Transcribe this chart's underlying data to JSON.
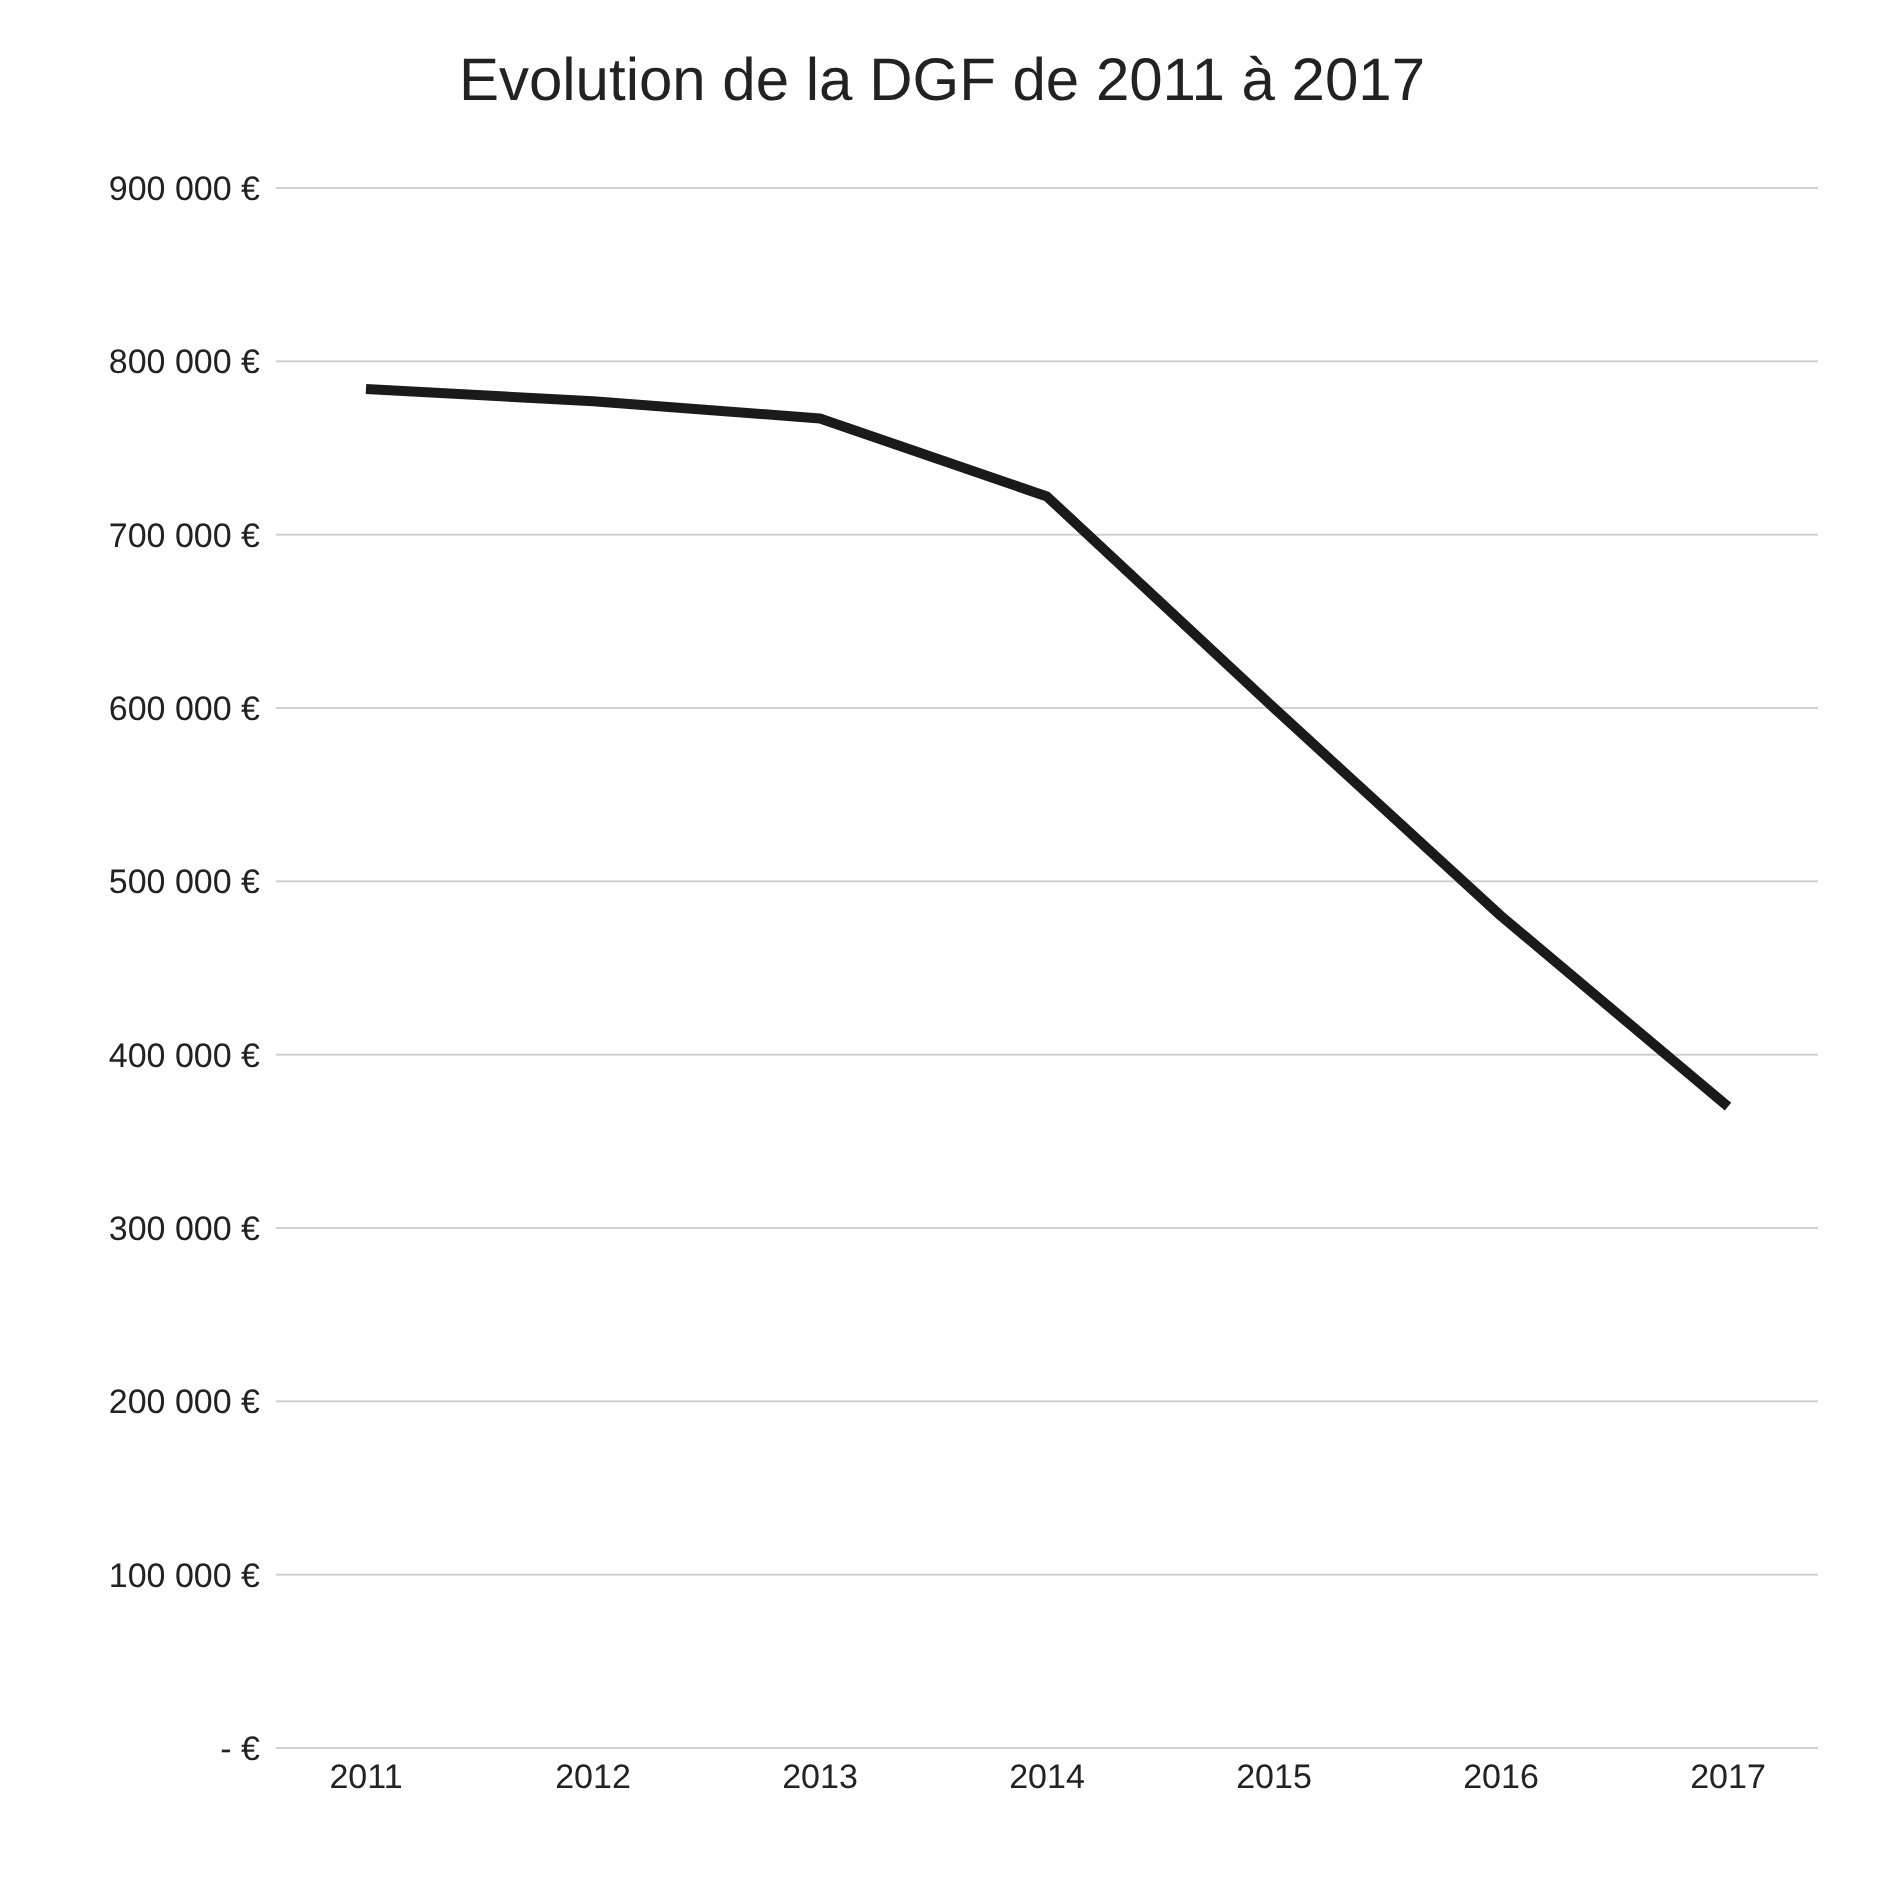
{
  "chart_data": {
    "type": "line",
    "title": "Evolution de la DGF de 2011 à 2017",
    "categories": [
      "2011",
      "2012",
      "2013",
      "2014",
      "2015",
      "2016",
      "2017"
    ],
    "series": [
      {
        "color": "#1a1a1a",
        "values": [
          784000,
          777000,
          767000,
          722000,
          600000,
          480000,
          370000
        ]
      }
    ],
    "ylim": [
      0,
      900000
    ],
    "yticks": [
      {
        "value": 0,
        "label": "- €"
      },
      {
        "value": 100000,
        "label": "100 000 €"
      },
      {
        "value": 200000,
        "label": "200 000 €"
      },
      {
        "value": 300000,
        "label": "300 000 €"
      },
      {
        "value": 400000,
        "label": "400 000 €"
      },
      {
        "value": 500000,
        "label": "500 000 €"
      },
      {
        "value": 600000,
        "label": "600 000 €"
      },
      {
        "value": 700000,
        "label": "700 000 €"
      },
      {
        "value": 800000,
        "label": "800 000 €"
      },
      {
        "value": 900000,
        "label": "900 000 €"
      }
    ],
    "grid": "y",
    "marker": "none",
    "line_style": "solid"
  }
}
